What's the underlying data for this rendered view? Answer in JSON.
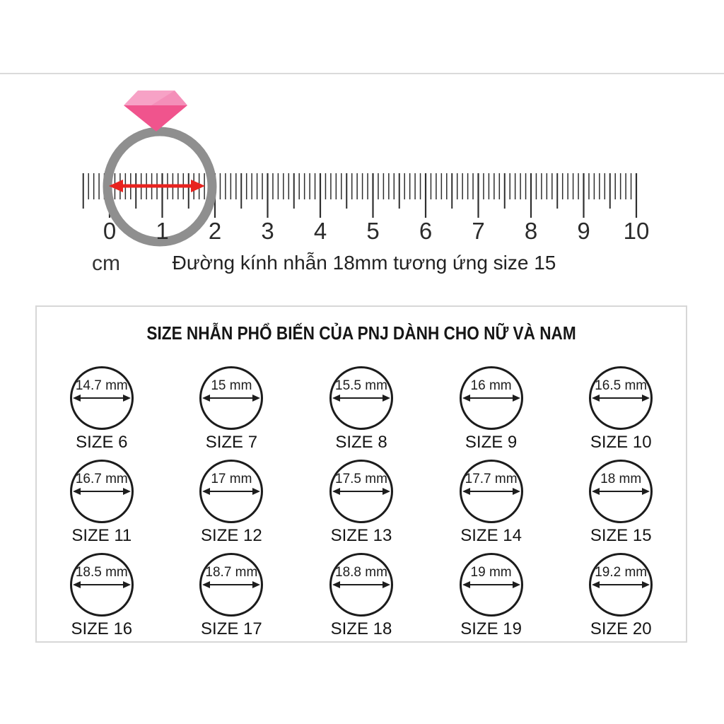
{
  "ruler": {
    "unit_label": "cm",
    "caption": "Đường kính nhẫn 18mm tương ứng size 15",
    "numbers": [
      "0",
      "1",
      "2",
      "3",
      "4",
      "5",
      "6",
      "7",
      "8",
      "9",
      "10"
    ]
  },
  "size_chart": {
    "title": "SIZE NHẪN PHỔ BIẾN CỦA PNJ DÀNH CHO NỮ VÀ NAM",
    "items": [
      {
        "diameter_label": "14.7 mm",
        "size_label": "SIZE 6"
      },
      {
        "diameter_label": "15 mm",
        "size_label": "SIZE 7"
      },
      {
        "diameter_label": "15.5 mm",
        "size_label": "SIZE 8"
      },
      {
        "diameter_label": "16 mm",
        "size_label": "SIZE 9"
      },
      {
        "diameter_label": "16.5 mm",
        "size_label": "SIZE 10"
      },
      {
        "diameter_label": "16.7 mm",
        "size_label": "SIZE 11"
      },
      {
        "diameter_label": "17 mm",
        "size_label": "SIZE 12"
      },
      {
        "diameter_label": "17.5 mm",
        "size_label": "SIZE 13"
      },
      {
        "diameter_label": "17.7 mm",
        "size_label": "SIZE 14"
      },
      {
        "diameter_label": "18 mm",
        "size_label": "SIZE 15"
      },
      {
        "diameter_label": "18.5 mm",
        "size_label": "SIZE 16"
      },
      {
        "diameter_label": "18.7 mm",
        "size_label": "SIZE 17"
      },
      {
        "diameter_label": "18.8 mm",
        "size_label": "SIZE 18"
      },
      {
        "diameter_label": "19 mm",
        "size_label": "SIZE 19"
      },
      {
        "diameter_label": "19.2 mm",
        "size_label": "SIZE 20"
      }
    ]
  },
  "colors": {
    "accent_red": "#e8231f",
    "ring_gray": "#8f8f8f",
    "diamond_light": "#f7a2c6",
    "diamond_mid": "#f48fb9",
    "diamond_dark": "#f0548d",
    "tick": "#2e2e2e",
    "number": "#2b2b2b",
    "circle_stroke": "#1c1c1c",
    "card_border": "#d7d7d7",
    "divider": "#dadada"
  }
}
